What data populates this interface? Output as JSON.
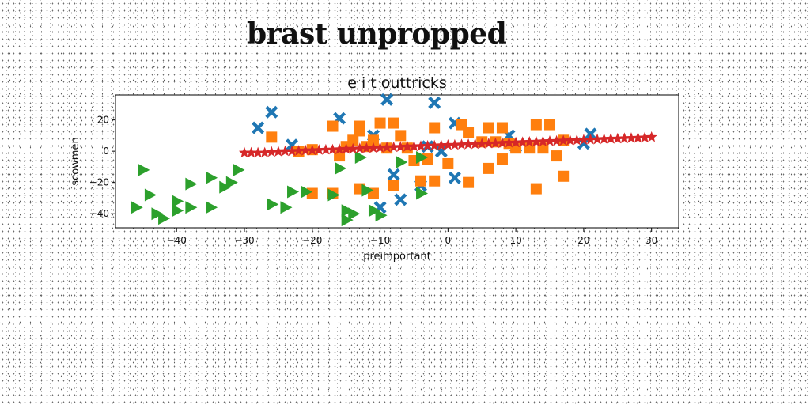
{
  "page": {
    "title": "brast unpropped"
  },
  "chart_data": {
    "type": "scatter",
    "title": "e i t outtricks",
    "xlabel": "preimportant",
    "ylabel": "scowmen",
    "xlim": [
      -49,
      34
    ],
    "ylim": [
      -49,
      36
    ],
    "xticks": [
      -40,
      -30,
      -20,
      -10,
      0,
      10,
      20,
      30
    ],
    "yticks": [
      20,
      0,
      -20,
      -40
    ],
    "grid": false,
    "legend": "none",
    "series": [
      {
        "marker": "x-filled",
        "color": "#1f77b4",
        "points": [
          [
            -28,
            15
          ],
          [
            -26,
            25
          ],
          [
            -16,
            21
          ],
          [
            -9,
            33
          ],
          [
            -2,
            31
          ],
          [
            1,
            18
          ],
          [
            -23,
            4
          ],
          [
            -11,
            10
          ],
          [
            -8,
            -15
          ],
          [
            -10,
            -36
          ],
          [
            -7,
            -31
          ],
          [
            -1,
            0
          ],
          [
            -4,
            -22
          ],
          [
            1,
            -17
          ],
          [
            10,
            3
          ],
          [
            9,
            10
          ],
          [
            20,
            5
          ],
          [
            21,
            11
          ],
          [
            -3,
            3
          ]
        ]
      },
      {
        "marker": "square",
        "color": "#ff7f0e",
        "points": [
          [
            -26,
            9
          ],
          [
            -22,
            0
          ],
          [
            -20,
            1
          ],
          [
            -17,
            16
          ],
          [
            -16,
            -3
          ],
          [
            -15,
            3
          ],
          [
            -14,
            7
          ],
          [
            -13,
            13
          ],
          [
            -13,
            16
          ],
          [
            -12,
            3
          ],
          [
            -11,
            7
          ],
          [
            -10,
            18
          ],
          [
            -9,
            2
          ],
          [
            -8,
            18
          ],
          [
            -7,
            10
          ],
          [
            -6,
            2
          ],
          [
            -5,
            -6
          ],
          [
            -4,
            -19
          ],
          [
            -3,
            -5
          ],
          [
            -2,
            15
          ],
          [
            -2,
            -19
          ],
          [
            0,
            -8
          ],
          [
            2,
            17
          ],
          [
            3,
            -20
          ],
          [
            3,
            12
          ],
          [
            5,
            6
          ],
          [
            6,
            15
          ],
          [
            6,
            -11
          ],
          [
            7,
            6
          ],
          [
            8,
            15
          ],
          [
            8,
            -5
          ],
          [
            9,
            5
          ],
          [
            10,
            2
          ],
          [
            12,
            2
          ],
          [
            13,
            17
          ],
          [
            13,
            -24
          ],
          [
            14,
            2
          ],
          [
            15,
            17
          ],
          [
            16,
            -3
          ],
          [
            17,
            7
          ],
          [
            17,
            -16
          ],
          [
            -20,
            -27
          ],
          [
            -17,
            -27
          ],
          [
            -13,
            -24
          ],
          [
            -11,
            -27
          ],
          [
            -8,
            -22
          ]
        ]
      },
      {
        "marker": "triangle-right",
        "color": "#2ca02c",
        "points": [
          [
            -46,
            -36
          ],
          [
            -45,
            -12
          ],
          [
            -44,
            -28
          ],
          [
            -43,
            -40
          ],
          [
            -42,
            -43
          ],
          [
            -40,
            -32
          ],
          [
            -40,
            -38
          ],
          [
            -38,
            -36
          ],
          [
            -38,
            -21
          ],
          [
            -35,
            -36
          ],
          [
            -35,
            -17
          ],
          [
            -33,
            -23
          ],
          [
            -32,
            -20
          ],
          [
            -31,
            -12
          ],
          [
            -26,
            -34
          ],
          [
            -24,
            -36
          ],
          [
            -23,
            -26
          ],
          [
            -21,
            -26
          ],
          [
            -17,
            -28
          ],
          [
            -16,
            -11
          ],
          [
            -15,
            -38
          ],
          [
            -15,
            -44
          ],
          [
            -14,
            -40
          ],
          [
            -13,
            -4
          ],
          [
            -12,
            -25
          ],
          [
            -11,
            -38
          ],
          [
            -10,
            -41
          ],
          [
            -7,
            -7
          ],
          [
            -4,
            -4
          ],
          [
            -4,
            -27
          ]
        ]
      },
      {
        "marker": "star",
        "color": "#d62728",
        "line": true,
        "points": [
          [
            -30,
            -1
          ],
          [
            -29,
            -1
          ],
          [
            -28,
            -1
          ],
          [
            -27,
            -1
          ],
          [
            -26,
            -0.5
          ],
          [
            -25,
            -0.3
          ],
          [
            -24,
            0
          ],
          [
            -23,
            0
          ],
          [
            -22,
            0.2
          ],
          [
            -21,
            0.4
          ],
          [
            -20,
            0.5
          ],
          [
            -19,
            0.7
          ],
          [
            -18,
            0.9
          ],
          [
            -17,
            1
          ],
          [
            -16,
            1.2
          ],
          [
            -15,
            1.4
          ],
          [
            -14,
            1.5
          ],
          [
            -13,
            1.7
          ],
          [
            -12,
            1.9
          ],
          [
            -11,
            2
          ],
          [
            -10,
            2.2
          ],
          [
            -9,
            2.4
          ],
          [
            -8,
            2.5
          ],
          [
            -7,
            2.7
          ],
          [
            -6,
            2.9
          ],
          [
            -5,
            3
          ],
          [
            -4,
            3.2
          ],
          [
            -3,
            3.4
          ],
          [
            -2,
            3.5
          ],
          [
            -1,
            3.7
          ],
          [
            0,
            3.9
          ],
          [
            1,
            4
          ],
          [
            2,
            4.2
          ],
          [
            3,
            4.4
          ],
          [
            4,
            4.5
          ],
          [
            5,
            4.7
          ],
          [
            6,
            4.9
          ],
          [
            7,
            5
          ],
          [
            8,
            5.2
          ],
          [
            9,
            5.4
          ],
          [
            10,
            5.5
          ],
          [
            11,
            5.7
          ],
          [
            12,
            5.9
          ],
          [
            13,
            6
          ],
          [
            14,
            6.2
          ],
          [
            15,
            6.4
          ],
          [
            16,
            6.5
          ],
          [
            17,
            6.7
          ],
          [
            18,
            6.9
          ],
          [
            19,
            7
          ],
          [
            20,
            7.2
          ],
          [
            21,
            7.4
          ],
          [
            22,
            7.5
          ],
          [
            23,
            7.7
          ],
          [
            24,
            7.9
          ],
          [
            25,
            8
          ],
          [
            26,
            8.2
          ],
          [
            27,
            8.4
          ],
          [
            28,
            8.5
          ],
          [
            29,
            8.7
          ],
          [
            30,
            9
          ]
        ]
      }
    ]
  }
}
